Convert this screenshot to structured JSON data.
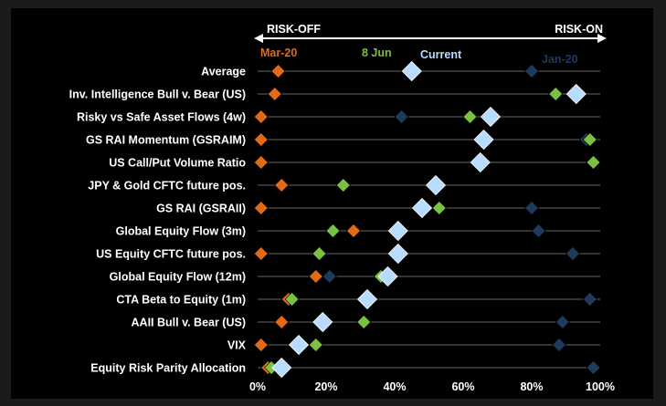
{
  "chart_data": {
    "type": "scatter",
    "title": "",
    "xlabel": "",
    "ylabel": "",
    "xlim": [
      0,
      100
    ],
    "x_ticks": [
      "0%",
      "20%",
      "40%",
      "60%",
      "80%",
      "100%"
    ],
    "x_tick_values": [
      0,
      20,
      40,
      60,
      80,
      100
    ],
    "direction_labels": {
      "left": "RISK-OFF",
      "right": "RISK-ON"
    },
    "categories": [
      "Average",
      "Inv. Intelligence Bull v. Bear (US)",
      "Risky vs Safe Asset Flows (4w)",
      "GS RAI Momentum (GSRAIM)",
      "US Call/Put Volume Ratio",
      "JPY & Gold CFTC future pos.",
      "GS RAI (GSRAII)",
      "Global Equity Flow (3m)",
      "US Equity CFTC future pos.",
      "Global Equity Flow (12m)",
      "CTA Beta to Equity (1m)",
      "AAII Bull v. Bear (US)",
      "VIX",
      "Equity Risk Parity Allocation"
    ],
    "series": [
      {
        "name": "Jan-20",
        "color": "#1f3a5a",
        "marker": "diamond-small",
        "values": [
          80,
          93,
          42,
          96,
          98,
          52,
          80,
          82,
          92,
          21,
          97,
          89,
          88,
          98
        ]
      },
      {
        "name": "Mar-20",
        "color": "#e06a16",
        "marker": "diamond-small",
        "values": [
          6,
          5,
          1,
          1,
          1,
          7,
          1,
          28,
          1,
          17,
          9,
          7,
          1,
          3
        ]
      },
      {
        "name": "8 Jun",
        "color": "#7ac142",
        "marker": "diamond-small",
        "values": [
          44,
          87,
          62,
          97,
          98,
          25,
          53,
          22,
          18,
          36,
          10,
          31,
          17,
          4
        ]
      },
      {
        "name": "Current",
        "color": "#b8dcff",
        "marker": "diamond-large",
        "values": [
          45,
          93,
          68,
          66,
          65,
          52,
          48,
          41,
          41,
          38,
          32,
          19,
          12,
          7
        ]
      }
    ],
    "legend": "top"
  }
}
